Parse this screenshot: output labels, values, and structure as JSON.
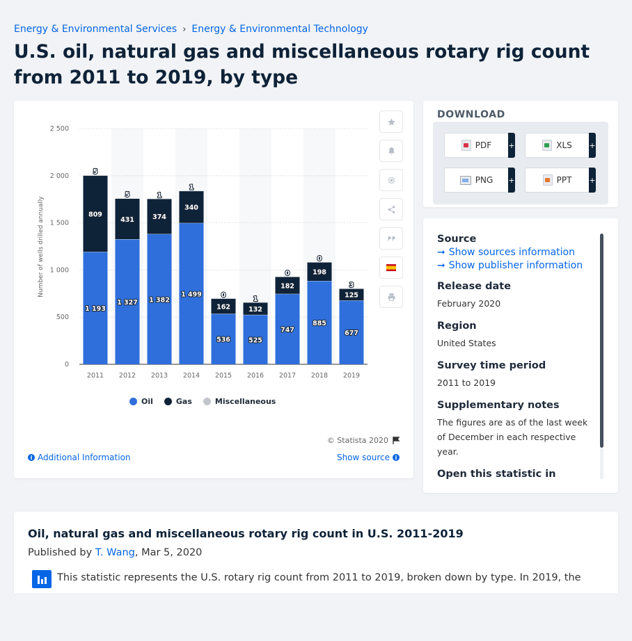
{
  "breadcrumb": {
    "items": [
      "Energy & Environmental Services",
      "Energy & Environmental Technology"
    ],
    "separator": "›"
  },
  "page_title": "U.S. oil, natural gas and miscellaneous rotary rig count from 2011 to 2019, by type",
  "chart_data": {
    "type": "bar",
    "stacked": true,
    "categories": [
      "2011",
      "2012",
      "2013",
      "2014",
      "2015",
      "2016",
      "2017",
      "2018",
      "2019"
    ],
    "series": [
      {
        "name": "Oil",
        "color": "#2e6fdb",
        "values": [
          1193,
          1327,
          1382,
          1499,
          536,
          525,
          747,
          885,
          677
        ],
        "labels": [
          "1 193",
          "1 327",
          "1 382",
          "1 499",
          "536",
          "525",
          "747",
          "885",
          "677"
        ]
      },
      {
        "name": "Gas",
        "color": "#0e2238",
        "values": [
          809,
          431,
          374,
          340,
          162,
          132,
          182,
          198,
          125
        ],
        "labels": [
          "809",
          "431",
          "374",
          "340",
          "162",
          "132",
          "182",
          "198",
          "125"
        ]
      },
      {
        "name": "Miscellaneous",
        "color": "#c2c6cb",
        "values": [
          5,
          5,
          1,
          1,
          0,
          1,
          0,
          0,
          3
        ],
        "labels": [
          "5",
          "5",
          "1",
          "1",
          "0",
          "1",
          "0",
          "0",
          "3"
        ]
      }
    ],
    "ylabel": "Number of wells drilled annually",
    "ylim": [
      0,
      2500
    ],
    "yticks": [
      0,
      500,
      1000,
      1500,
      2000,
      2500
    ],
    "ytick_labels": [
      "0",
      "500",
      "1 000",
      "1 500",
      "2 000",
      "2 500"
    ],
    "grid": true,
    "legend_position": "bottom-center"
  },
  "chart_footer": {
    "copyright": "© Statista 2020",
    "additional_info": "Additional Information",
    "show_source": "Show source"
  },
  "download": {
    "heading": "DOWNLOAD",
    "buttons": [
      "PDF",
      "XLS",
      "PNG",
      "PPT"
    ],
    "plus": "+"
  },
  "info": {
    "source_label": "Source",
    "show_sources": "Show sources information",
    "show_publisher": "Show publisher information",
    "release_label": "Release date",
    "release_value": "February 2020",
    "region_label": "Region",
    "region_value": "United States",
    "survey_label": "Survey time period",
    "survey_value": "2011 to 2019",
    "notes_label": "Supplementary notes",
    "notes_value": "The figures are as of the last week of December in each respective year.",
    "open_label": "Open this statistic in"
  },
  "description": {
    "title": "Oil, natural gas and miscellaneous rotary rig count in U.S. 2011-2019",
    "published_prefix": "Published by",
    "author": "T. Wang",
    "date": ", Mar 5, 2020",
    "text": "This statistic represents the U.S. rotary rig count from 2011 to 2019, broken down by type. In 2019, the"
  },
  "icons": {
    "star": "star-icon",
    "bell": "bell-icon",
    "gear": "gear-icon",
    "share": "share-icon",
    "quote": "quote-icon",
    "flag": "flag-es-icon",
    "print": "print-icon"
  }
}
